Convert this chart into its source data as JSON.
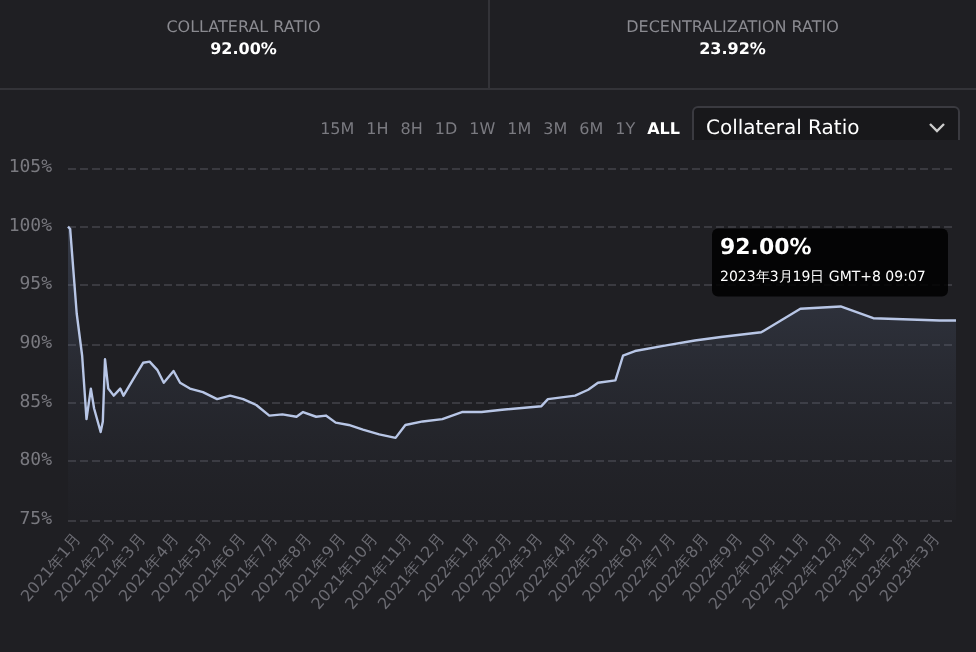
{
  "chart_data": {
    "type": "area",
    "annotations": [
      "COLLATERAL RATIO",
      "92.00%",
      "DECENTRALIZATION RATIO",
      "23.92%",
      "15M",
      "1H",
      "8H",
      "1D",
      "1W",
      "1M",
      "3M",
      "6M",
      "1Y",
      "ALL",
      "Collateral Ratio",
      "92.00%",
      "2023年3月19日 GMT+8 09:07"
    ],
    "series": [
      {
        "color": "#b8c6e6",
        "x": [
          "2020-12-23",
          "2020-12-25",
          "2020-12-28",
          "2020-12-31",
          "2021-01-05",
          "2021-01-09",
          "2021-01-13",
          "2021-01-16",
          "2021-01-22",
          "2021-01-24",
          "2021-01-26",
          "2021-01-29",
          "2021-02-03",
          "2021-02-09",
          "2021-02-12",
          "2021-02-21",
          "2021-03-02",
          "2021-03-08",
          "2021-03-15",
          "2021-03-21",
          "2021-03-30",
          "2021-04-05",
          "2021-04-14",
          "2021-04-26",
          "2021-05-09",
          "2021-05-21",
          "2021-06-02",
          "2021-06-14",
          "2021-06-26",
          "2021-07-08",
          "2021-07-21",
          "2021-07-27",
          "2021-08-08",
          "2021-08-17",
          "2021-08-26",
          "2021-09-07",
          "2021-09-20",
          "2021-10-05",
          "2021-10-20",
          "2021-10-29",
          "2021-11-14",
          "2021-12-02",
          "2021-12-20",
          "2022-01-07",
          "2022-01-26",
          "2022-03-03",
          "2022-03-09",
          "2022-04-03",
          "2022-04-15",
          "2022-04-24",
          "2022-05-10",
          "2022-05-13",
          "2022-05-17",
          "2022-05-28",
          "2022-06-27",
          "2022-07-22",
          "2022-08-15",
          "2022-09-21",
          "2022-10-27",
          "2022-12-03",
          "2023-01-02",
          "2023-03-04",
          "2023-03-19"
        ],
        "values": [
          100,
          99.8,
          96.2,
          92.6,
          89,
          83.6,
          86.2,
          84.5,
          82.5,
          83.4,
          88.7,
          86.2,
          85.6,
          86.2,
          85.6,
          87,
          88.4,
          88.5,
          87.8,
          86.7,
          87.7,
          86.7,
          86.2,
          85.9,
          85.3,
          85.6,
          85.3,
          84.8,
          83.9,
          84,
          83.8,
          84.2,
          83.8,
          83.9,
          83.3,
          83.1,
          82.7,
          82.3,
          82,
          83.1,
          83.4,
          83.6,
          84.2,
          84.2,
          84.4,
          84.7,
          85.3,
          85.6,
          86.1,
          86.7,
          86.9,
          87.8,
          89,
          89.4,
          89.9,
          90.3,
          90.6,
          91,
          93,
          93.2,
          92.2,
          92,
          92
        ]
      }
    ],
    "xlim": [
      "2020-12-23",
      "2023-03-19"
    ],
    "xticks": [
      {
        "value": "2021-01",
        "label": "2021年1月"
      },
      {
        "value": "2021-02",
        "label": "2021年2月"
      },
      {
        "value": "2021-03",
        "label": "2021年3月"
      },
      {
        "value": "2021-04",
        "label": "2021年4月"
      },
      {
        "value": "2021-05",
        "label": "2021年5月"
      },
      {
        "value": "2021-06",
        "label": "2021年6月"
      },
      {
        "value": "2021-07",
        "label": "2021年7月"
      },
      {
        "value": "2021-08",
        "label": "2021年8月"
      },
      {
        "value": "2021-09",
        "label": "2021年9月"
      },
      {
        "value": "2021-10",
        "label": "2021年10月"
      },
      {
        "value": "2021-11",
        "label": "2021年11月"
      },
      {
        "value": "2021-12",
        "label": "2021年12月"
      },
      {
        "value": "2022-01",
        "label": "2022年1月"
      },
      {
        "value": "2022-02",
        "label": "2022年2月"
      },
      {
        "value": "2022-03",
        "label": "2022年3月"
      },
      {
        "value": "2022-04",
        "label": "2022年4月"
      },
      {
        "value": "2022-05",
        "label": "2022年5月"
      },
      {
        "value": "2022-06",
        "label": "2022年6月"
      },
      {
        "value": "2022-07",
        "label": "2022年7月"
      },
      {
        "value": "2022-08",
        "label": "2022年8月"
      },
      {
        "value": "2022-09",
        "label": "2022年9月"
      },
      {
        "value": "2022-10",
        "label": "2022年10月"
      },
      {
        "value": "2022-11",
        "label": "2022年11月"
      },
      {
        "value": "2022-12",
        "label": "2022年12月"
      },
      {
        "value": "2023-01",
        "label": "2023年1月"
      },
      {
        "value": "2023-02",
        "label": "2023年2月"
      },
      {
        "value": "2023-03",
        "label": "2023年3月"
      }
    ],
    "ylim": [
      75,
      105
    ],
    "yticks": [
      {
        "value": 75,
        "label": "75%"
      },
      {
        "value": 80,
        "label": "80%"
      },
      {
        "value": 85,
        "label": "85%"
      },
      {
        "value": 90,
        "label": "90%"
      },
      {
        "value": 95,
        "label": "95%"
      },
      {
        "value": 100,
        "label": "100%"
      },
      {
        "value": 105,
        "label": "105%"
      }
    ],
    "grid": "y",
    "marker": "none",
    "line_style": "solid"
  }
}
